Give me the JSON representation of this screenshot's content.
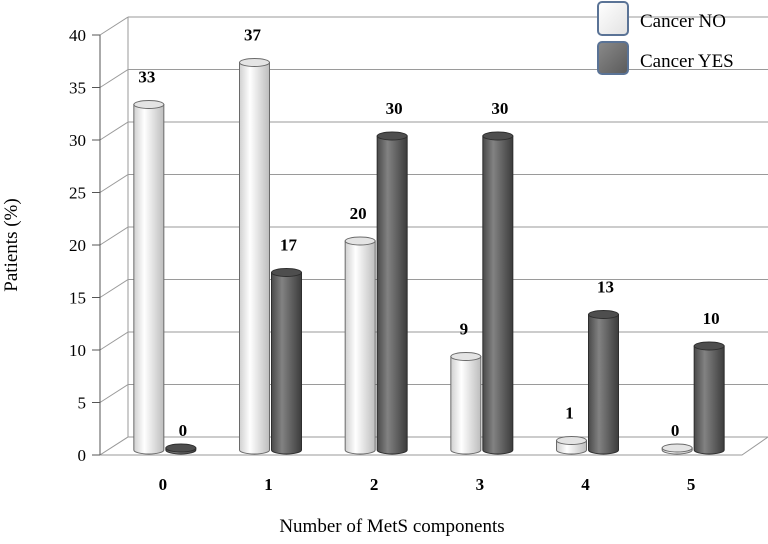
{
  "chart_data": {
    "type": "bar",
    "categories": [
      "0",
      "1",
      "2",
      "3",
      "4",
      "5"
    ],
    "series": [
      {
        "name": "Cancer NO",
        "values": [
          33,
          37,
          20,
          9,
          1,
          0
        ],
        "color": "#f2f2f2"
      },
      {
        "name": "Cancer YES",
        "values": [
          0,
          17,
          30,
          30,
          13,
          10
        ],
        "color": "#6f6f6f"
      }
    ],
    "xlabel": "Number of MetS components",
    "ylabel": "Patients (%)",
    "ylim": [
      0,
      40
    ],
    "yticks": [
      0,
      5,
      10,
      15,
      20,
      25,
      30,
      35,
      40
    ],
    "grid": true,
    "legend": "top-right",
    "style": "3d-cylinder"
  }
}
